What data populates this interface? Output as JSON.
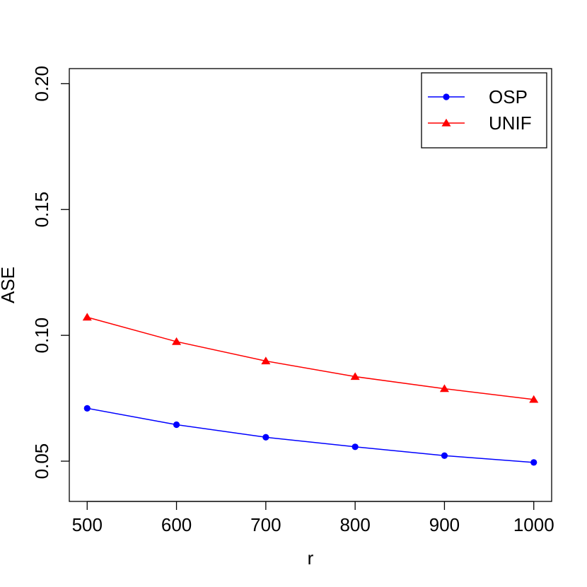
{
  "chart_data": {
    "type": "line",
    "title": "",
    "xlabel": "r",
    "ylabel": "ASE",
    "x": [
      500,
      600,
      700,
      800,
      900,
      1000
    ],
    "x_ticks": [
      500,
      600,
      700,
      800,
      900,
      1000
    ],
    "x_tick_labels": [
      "500",
      "600",
      "700",
      "800",
      "900",
      "1000"
    ],
    "xlim": [
      480,
      1020
    ],
    "y_ticks": [
      0.05,
      0.1,
      0.15,
      0.2
    ],
    "y_tick_labels": [
      "0.05",
      "0.10",
      "0.15",
      "0.20"
    ],
    "ylim": [
      0.034,
      0.206
    ],
    "grid": false,
    "legend_position": "top-right",
    "series": [
      {
        "name": "OSP",
        "color": "#0000ff",
        "marker": "circle",
        "values": [
          0.071,
          0.0645,
          0.0595,
          0.0557,
          0.0522,
          0.0495
        ]
      },
      {
        "name": "UNIF",
        "color": "#ff0000",
        "marker": "triangle",
        "values": [
          0.1072,
          0.0975,
          0.0898,
          0.0836,
          0.0788,
          0.0745
        ]
      }
    ]
  }
}
